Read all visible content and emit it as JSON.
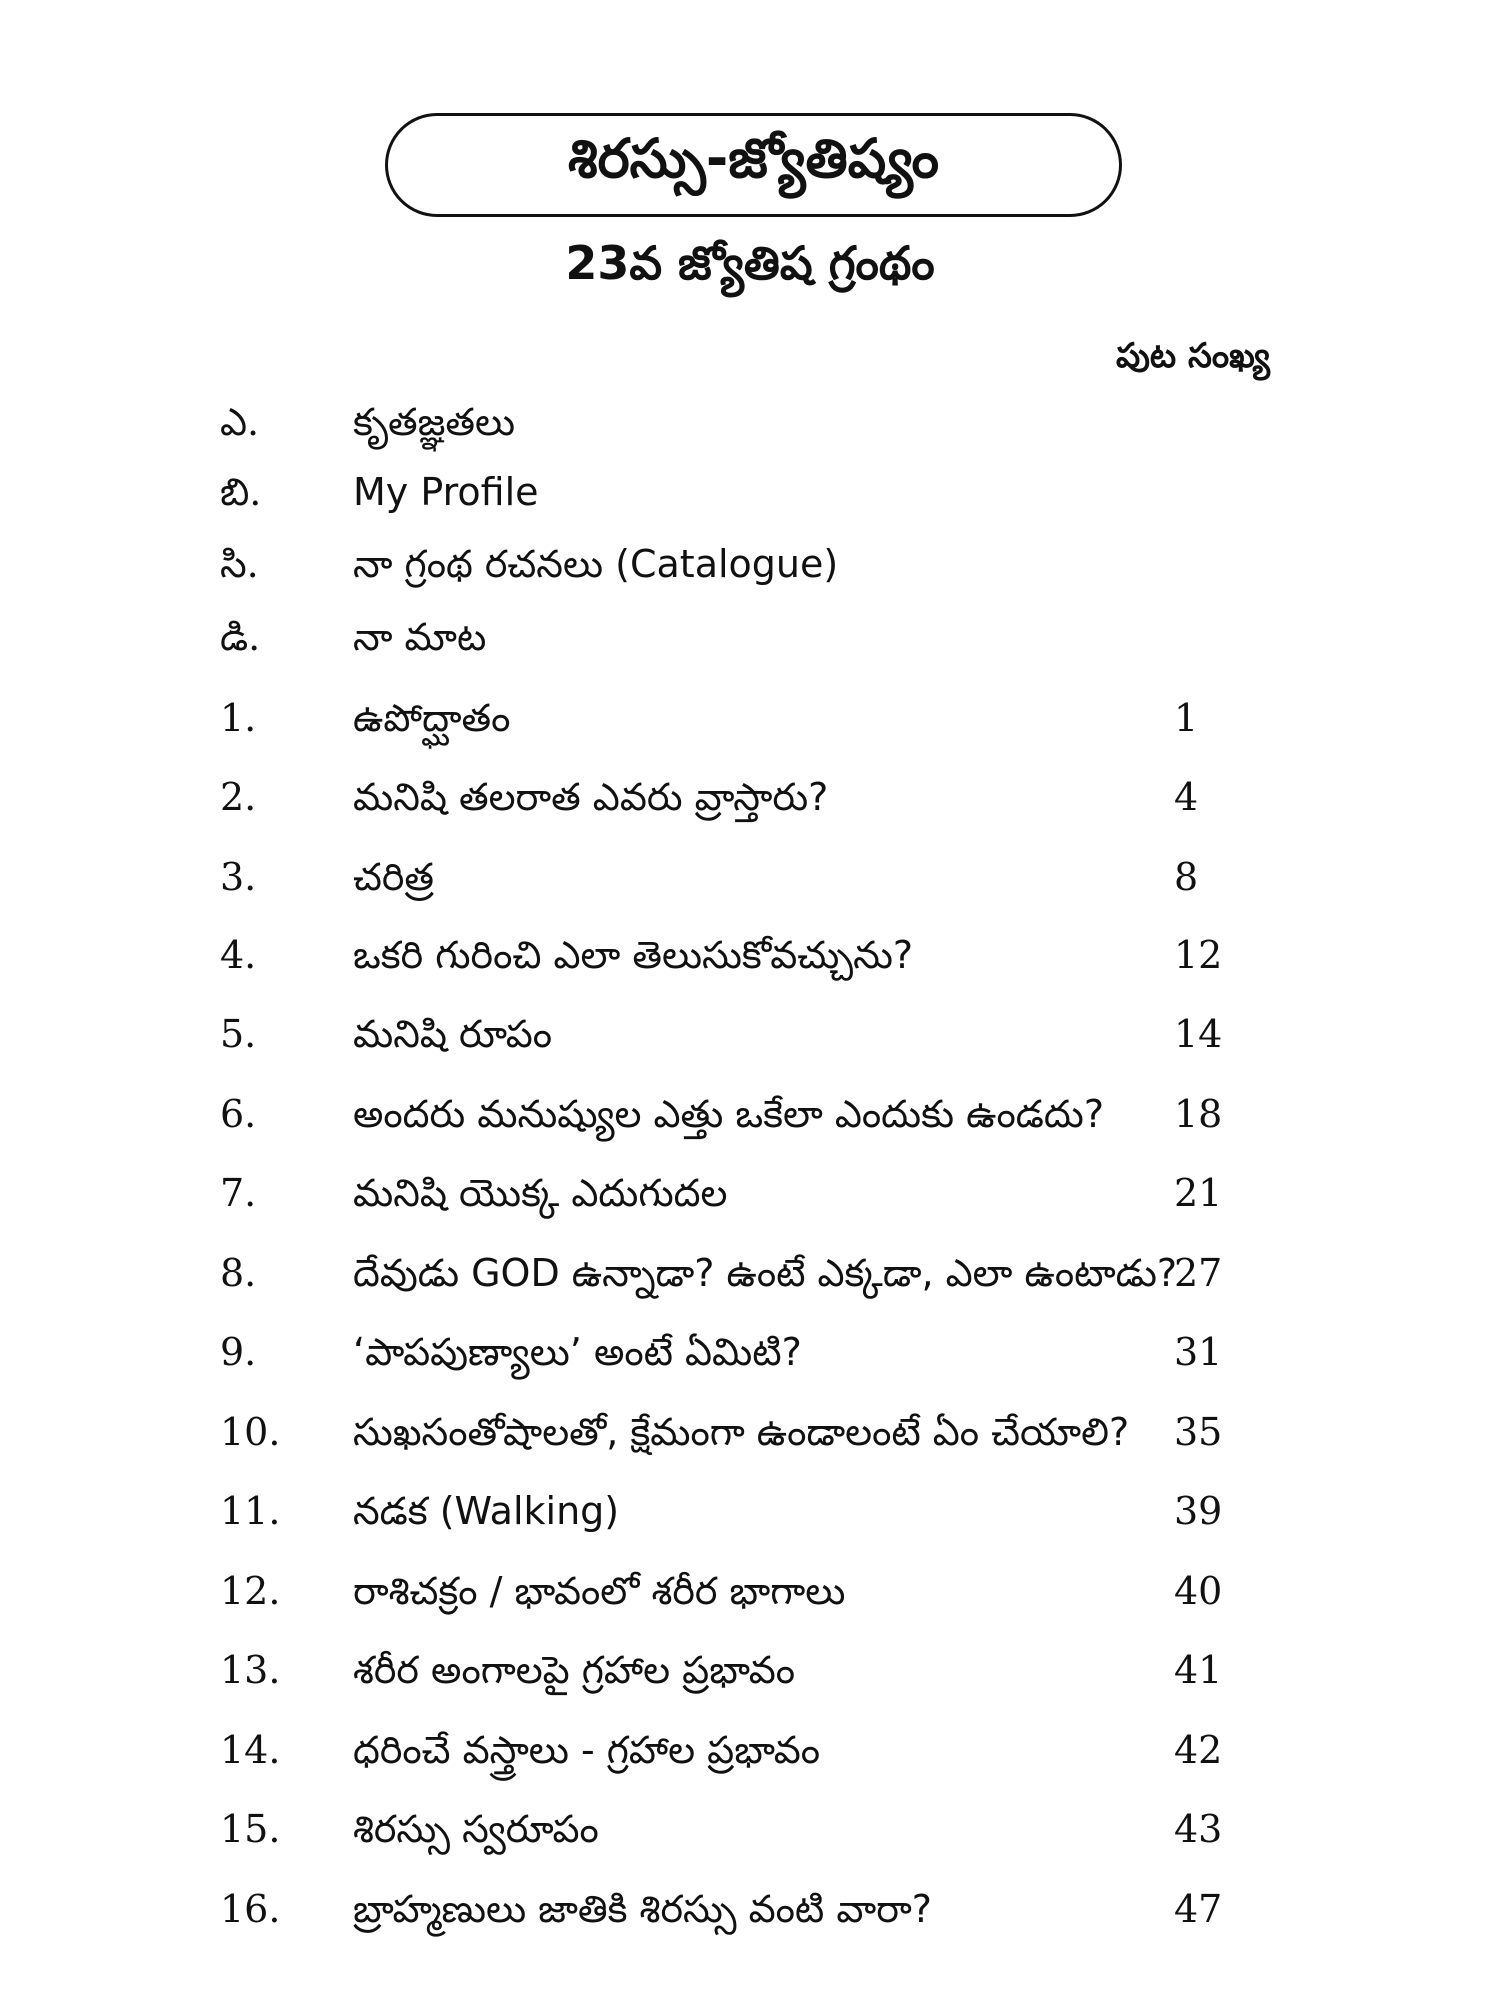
{
  "title": "శిరస్సు-జ్యోతిష్యం",
  "subtitle": "23వ జ్యోతిష గ్రంథం",
  "page_header": "పుట సంఖ్య",
  "items": [
    {
      "num": "ఎ.",
      "text": "కృతజ్ఞతలు",
      "page": ""
    },
    {
      "num": "బి.",
      "text": "My Profile",
      "page": ""
    },
    {
      "num": "సి.",
      "text": "నా గ్రంథ రచనలు (Catalogue)",
      "page": ""
    },
    {
      "num": "డి.",
      "text": "నా మాట",
      "page": ""
    },
    {
      "num": "1.",
      "text": "ఉపోద్ఘాతం",
      "page": "1"
    },
    {
      "num": "2.",
      "text": "మనిషి తలరాత ఎవరు వ్రాస్తారు?",
      "page": "4"
    },
    {
      "num": "3.",
      "text": "చరిత్ర",
      "page": "8"
    },
    {
      "num": "4.",
      "text": "ఒకరి గురించి ఎలా తెలుసుకోవచ్చును?",
      "page": "12"
    },
    {
      "num": "5.",
      "text": "మనిషి రూపం",
      "page": "14"
    },
    {
      "num": "6.",
      "text": "అందరు మనుష్యుల ఎత్తు ఒకేలా ఎందుకు ఉండదు?",
      "page": "18"
    },
    {
      "num": "7.",
      "text": "మనిషి యొక్క ఎదుగుదల",
      "page": "21"
    },
    {
      "num": "8.",
      "text": "దేవుడు GOD ఉన్నాడా? ఉంటే ఎక్కడా, ఎలా ఉంటాడు?",
      "page": "27"
    },
    {
      "num": "9.",
      "text": "‘పాపపుణ్యాలు’ అంటే ఏమిటి?",
      "page": "31"
    },
    {
      "num": "10.",
      "text": "సుఖసంతోషాలతో, క్షేమంగా ఉండాలంటే ఏం చేయాలి?",
      "page": "35"
    },
    {
      "num": "11.",
      "text": "నడక (Walking)",
      "page": "39"
    },
    {
      "num": "12.",
      "text": "రాశిచక్రం / భావంలో శరీర భాగాలు",
      "page": "40"
    },
    {
      "num": "13.",
      "text": "శరీర అంగాలపై గ్రహాల ప్రభావం",
      "page": "41"
    },
    {
      "num": "14.",
      "text": "ధరించే వస్త్రాలు - గ్రహాల ప్రభావం",
      "page": "42"
    },
    {
      "num": "15.",
      "text": "శిరస్సు స్వరూపం",
      "page": "43"
    },
    {
      "num": "16.",
      "text": "బ్రాహ్మణులు జాతికి శిరస్సు వంటి వారా?",
      "page": "47"
    }
  ]
}
